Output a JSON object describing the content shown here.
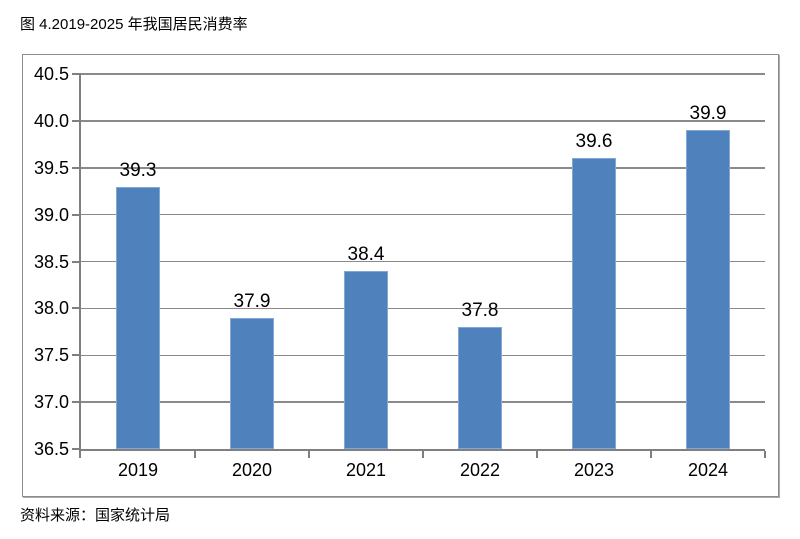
{
  "page": {
    "title": "图 4.2019-2025 年我国居民消费率",
    "source": "资料来源：国家统计局"
  },
  "chart_data": {
    "type": "bar",
    "title": "图 4.2019-2025 年我国居民消费率",
    "categories": [
      "2019",
      "2020",
      "2021",
      "2022",
      "2023",
      "2024"
    ],
    "values": [
      39.3,
      37.9,
      38.4,
      37.8,
      39.6,
      39.9
    ],
    "value_labels": [
      "39.3",
      "37.9",
      "38.4",
      "37.8",
      "39.6",
      "39.9"
    ],
    "xlabel": "",
    "ylabel": "",
    "ylim": [
      36.5,
      40.5
    ],
    "ytick_step": 0.5,
    "yticks": [
      "40.5",
      "40.0",
      "39.5",
      "39.0",
      "38.5",
      "38.0",
      "37.5",
      "37.0",
      "36.5"
    ],
    "grid": true,
    "legend": false,
    "source": "资料来源：国家统计局",
    "colors": {
      "bar_fill": "#4F81BD",
      "bar_border": "#84A8D4",
      "gridline": "#8a8a8a",
      "axis_line": "#7f7f7f",
      "frame_border": "#8c8c8c",
      "text": "#000000"
    }
  }
}
